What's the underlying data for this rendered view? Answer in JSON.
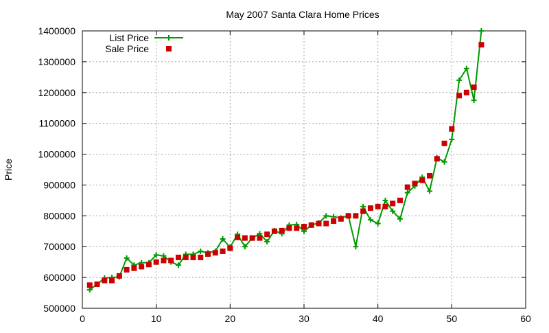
{
  "chart_data": {
    "type": "line",
    "title": "May 2007 Santa Clara Home Prices",
    "xlabel": "",
    "ylabel": "Price",
    "xlim": [
      0,
      60
    ],
    "ylim": [
      500000,
      1400000
    ],
    "xticks": [
      0,
      10,
      20,
      30,
      40,
      50,
      60
    ],
    "yticks": [
      500000,
      600000,
      700000,
      800000,
      900000,
      1000000,
      1100000,
      1200000,
      1300000,
      1400000
    ],
    "grid": true,
    "legend_position": "top-left",
    "series": [
      {
        "name": "List Price",
        "style": "line-with-plus-markers",
        "color": "#009900",
        "x": [
          1,
          2,
          3,
          4,
          5,
          6,
          7,
          8,
          9,
          10,
          11,
          12,
          13,
          14,
          15,
          16,
          17,
          18,
          19,
          20,
          21,
          22,
          23,
          24,
          25,
          26,
          27,
          28,
          29,
          30,
          31,
          32,
          33,
          34,
          35,
          36,
          37,
          38,
          39,
          40,
          41,
          42,
          43,
          44,
          45,
          46,
          47,
          48,
          49,
          50,
          51,
          52,
          53,
          54
        ],
        "y": [
          560000,
          578000,
          598000,
          600000,
          602000,
          663000,
          640000,
          648000,
          648000,
          673000,
          670000,
          650000,
          640000,
          675000,
          675000,
          685000,
          680000,
          685000,
          725000,
          698000,
          740000,
          700000,
          728000,
          742000,
          716000,
          752000,
          742000,
          770000,
          772000,
          750000,
          770000,
          777000,
          800000,
          797000,
          793000,
          800000,
          700000,
          830000,
          787000,
          775000,
          850000,
          815000,
          790000,
          875000,
          897000,
          925000,
          880000,
          988000,
          975000,
          1048000,
          1240000,
          1278000,
          1175000,
          1400000
        ]
      },
      {
        "name": "Sale Price",
        "style": "square-markers",
        "color": "#cc0000",
        "x": [
          1,
          2,
          3,
          4,
          5,
          6,
          7,
          8,
          9,
          10,
          11,
          12,
          13,
          14,
          15,
          16,
          17,
          18,
          19,
          20,
          21,
          22,
          23,
          24,
          25,
          26,
          27,
          28,
          29,
          30,
          31,
          32,
          33,
          34,
          35,
          36,
          37,
          38,
          39,
          40,
          41,
          42,
          43,
          44,
          45,
          46,
          47,
          48,
          49,
          50,
          51,
          52,
          53,
          54
        ],
        "y": [
          575000,
          578000,
          590000,
          590000,
          605000,
          625000,
          630000,
          635000,
          642000,
          650000,
          655000,
          655000,
          665000,
          665000,
          665000,
          665000,
          676000,
          680000,
          685000,
          695000,
          730000,
          728000,
          728000,
          728000,
          740000,
          750000,
          752000,
          760000,
          760000,
          765000,
          770000,
          775000,
          775000,
          783000,
          790000,
          800000,
          800000,
          815000,
          825000,
          830000,
          830000,
          840000,
          850000,
          893000,
          905000,
          915000,
          930000,
          985000,
          1035000,
          1082000,
          1190000,
          1200000,
          1217000,
          1355000
        ]
      }
    ]
  }
}
